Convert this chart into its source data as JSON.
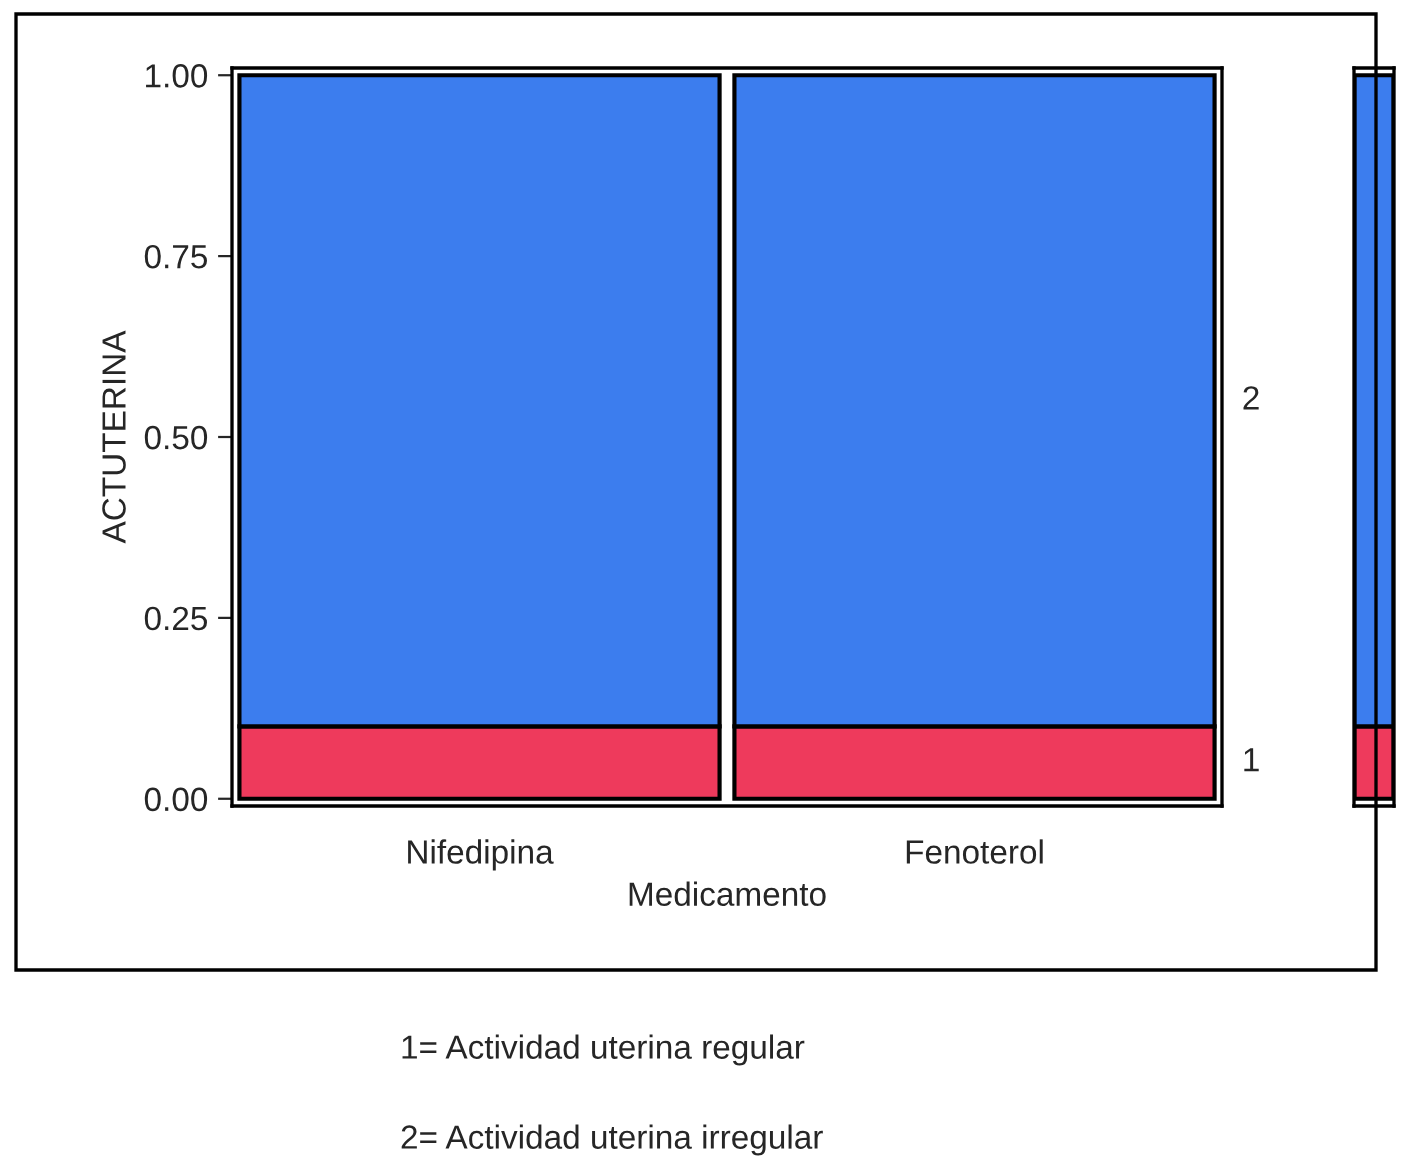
{
  "chart_data": [
    {
      "type": "bar",
      "stacked": true,
      "xlabel": "Medicamento",
      "ylabel": "ACTUTERINA",
      "categories": [
        "Nifedipina",
        "Fenoterol"
      ],
      "series": [
        {
          "name": "1",
          "color": "#ee3a5c",
          "values": [
            0.1,
            0.1
          ]
        },
        {
          "name": "2",
          "color": "#3c7dee",
          "values": [
            0.9,
            0.9
          ]
        }
      ],
      "ylim": [
        -0.01,
        1.01
      ],
      "yticks": [
        {
          "value": 0,
          "label": "0.00"
        },
        {
          "value": 0.25,
          "label": "0.25"
        },
        {
          "value": 0.5,
          "label": "0.50"
        },
        {
          "value": 0.75,
          "label": "0.75"
        },
        {
          "value": 1,
          "label": "1.00"
        }
      ],
      "grid": false,
      "legend": false,
      "annotations": [
        "1= Actividad uterina regular",
        "2= Actividad uterina irregular"
      ]
    },
    {
      "type": "bar",
      "stacked": true,
      "categories": [
        null
      ],
      "series": [
        {
          "color": "#ee3a5c",
          "values": [
            0.1
          ]
        },
        {
          "color": "#3c7dee",
          "values": [
            0.9
          ]
        }
      ],
      "ylim": [
        -0.01,
        1.01
      ],
      "tick_labels": false,
      "grid": false,
      "legend": false
    }
  ]
}
